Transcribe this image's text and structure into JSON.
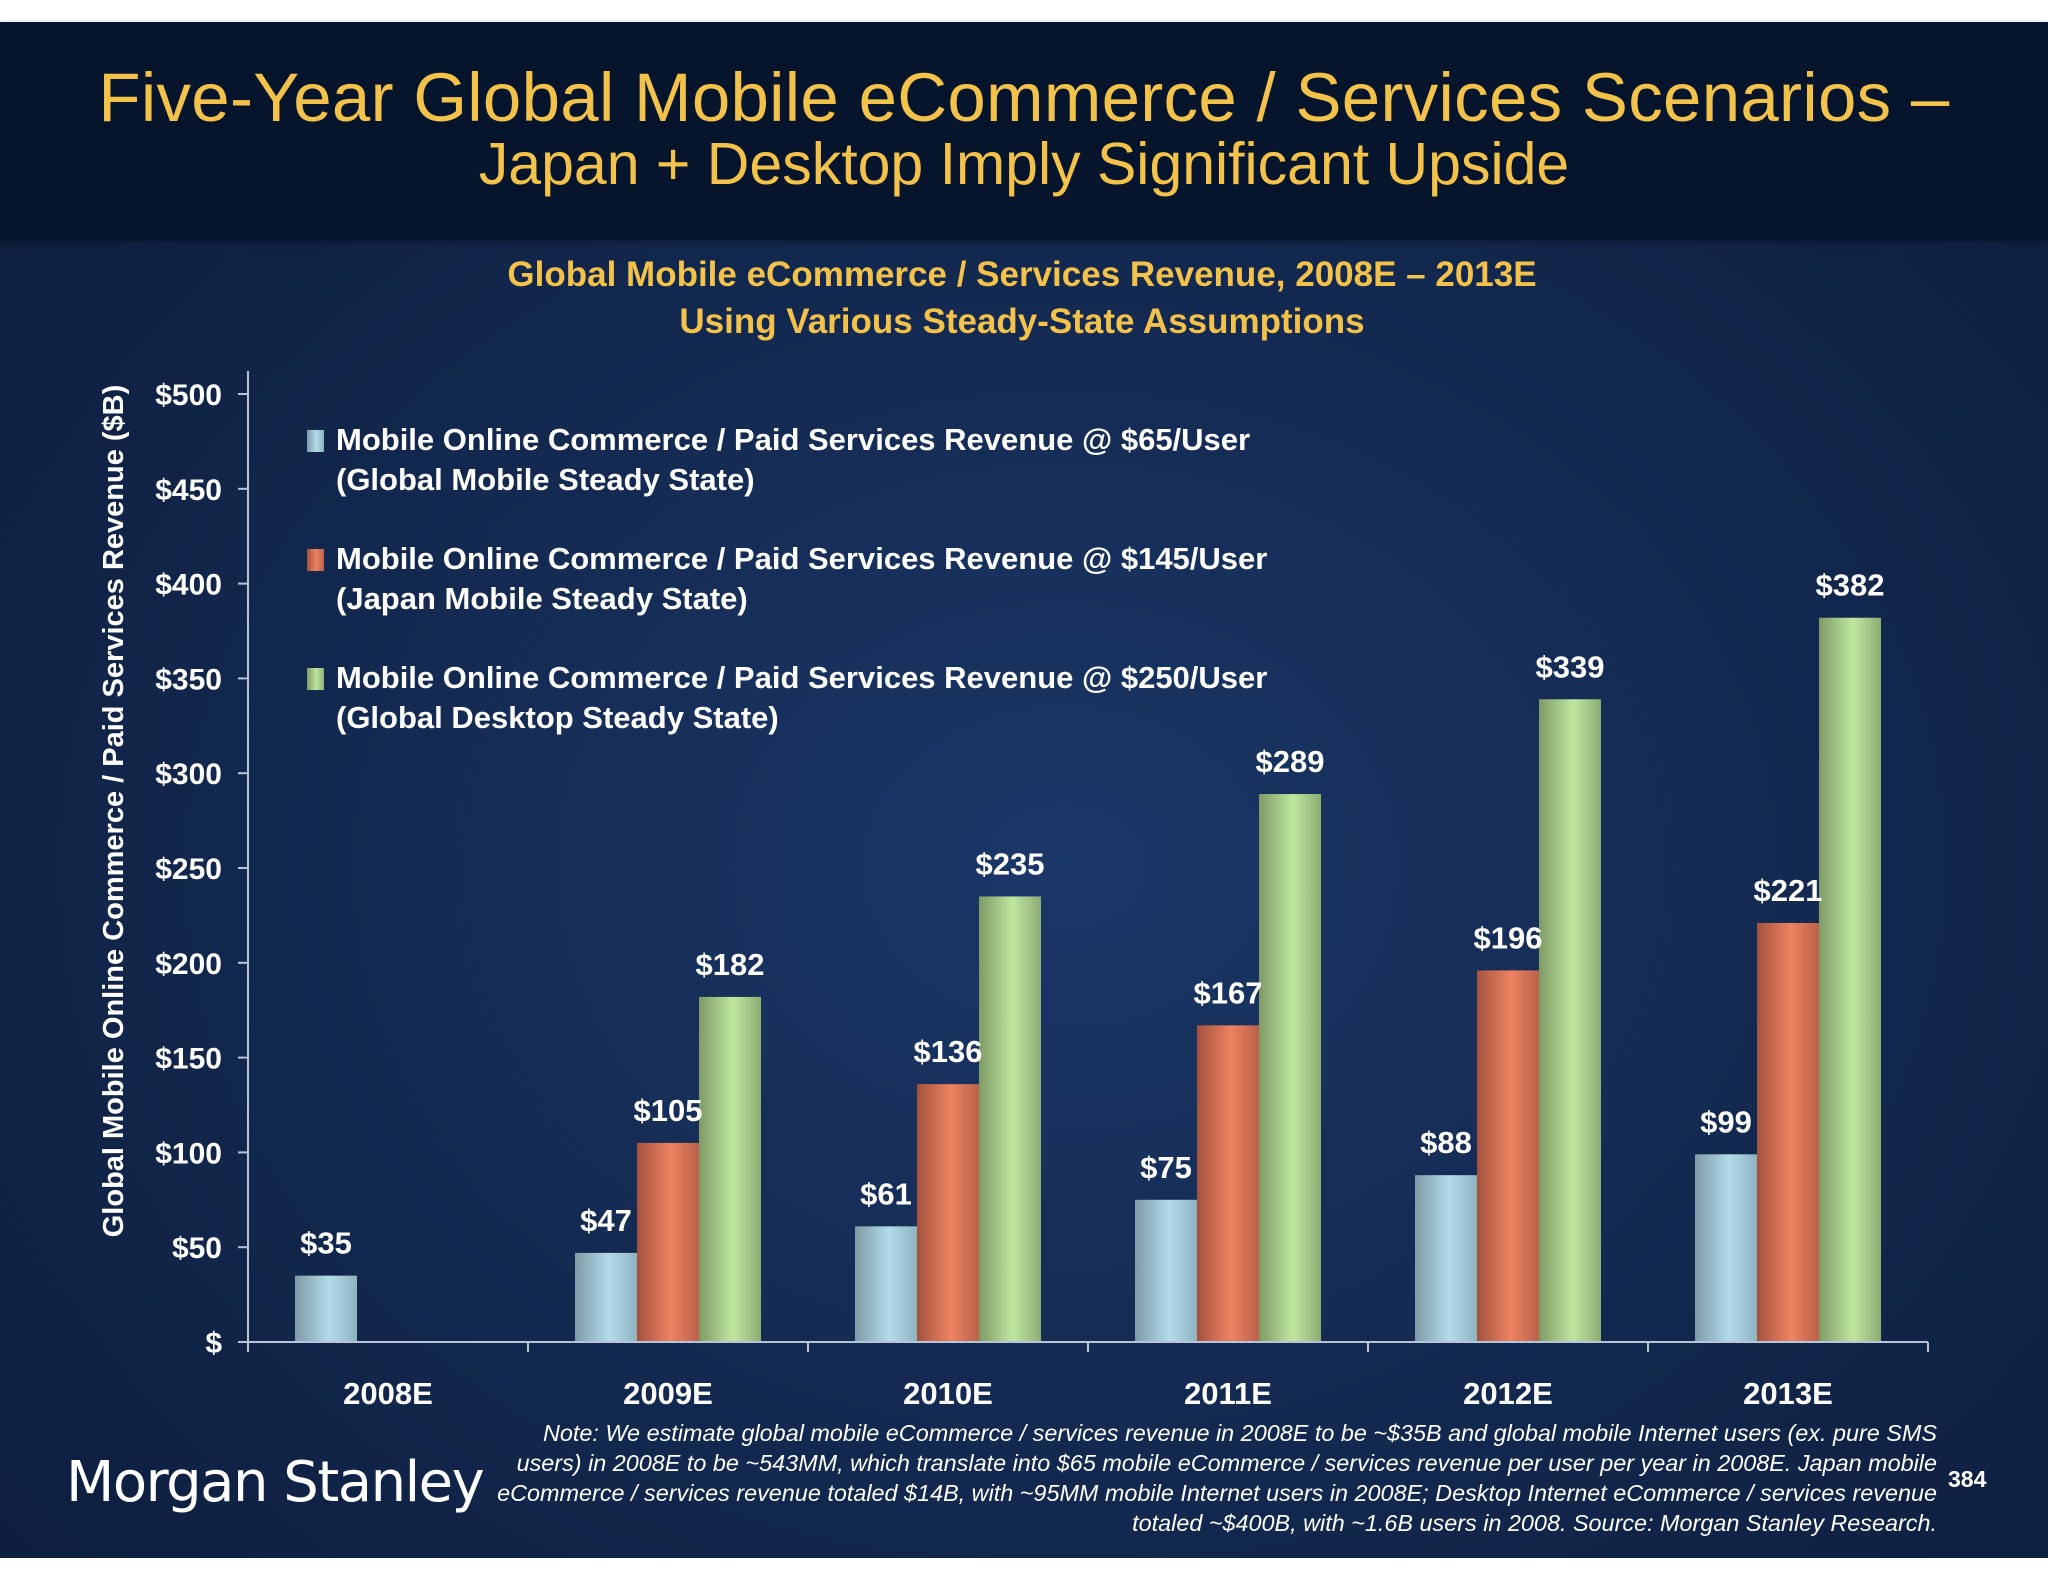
{
  "slide": {
    "title": "Five-Year Global Mobile eCommerce / Services Scenarios –",
    "subtitle": "Japan + Desktop Imply Significant Upside",
    "brand": "Morgan Stanley",
    "page_number": "384",
    "note": "Note: We estimate global mobile eCommerce / services revenue in 2008E to be ~$35B and global mobile Internet users (ex. pure SMS users) in 2008E to be ~543MM, which translate into $65 mobile eCommerce / services revenue per user per year in 2008E. Japan mobile eCommerce / services revenue totaled $14B, with ~95MM mobile Internet users in 2008E; Desktop Internet eCommerce / services revenue totaled ~$400B, with ~1.6B users in 2008. Source: Morgan Stanley Research.",
    "colors": {
      "header_bg": "#07152c",
      "title": "#f2c24a",
      "chart_title": "#f2c24a",
      "text": "#ffffff"
    }
  },
  "chart_data": {
    "type": "bar",
    "title": "Global Mobile eCommerce / Services Revenue, 2008E – 2013E",
    "subtitle": "Using Various Steady-State Assumptions",
    "xlabel": "",
    "ylabel": "Global Mobile Online Commerce / Paid Services Revenue ($B)",
    "ylim": [
      0,
      500
    ],
    "ytick_step": 50,
    "y_tick_labels": [
      "$",
      "$50",
      "$100",
      "$150",
      "$200",
      "$250",
      "$300",
      "$350",
      "$400",
      "$450",
      "$500"
    ],
    "grid": false,
    "legend_position": "top-left",
    "categories": [
      "2008E",
      "2009E",
      "2010E",
      "2011E",
      "2012E",
      "2013E"
    ],
    "series": [
      {
        "name": "Mobile Online Commerce / Paid Services Revenue @ $65/User",
        "name_line2": "(Global Mobile Steady State)",
        "color": "#a9d3e3",
        "values": [
          35,
          47,
          61,
          75,
          88,
          99
        ],
        "labels": [
          "$35",
          "$47",
          "$61",
          "$75",
          "$88",
          "$99"
        ]
      },
      {
        "name": "Mobile Online Commerce / Paid Services Revenue @ $145/User",
        "name_line2": "(Japan Mobile Steady State)",
        "color": "#e57a5c",
        "values": [
          null,
          105,
          136,
          167,
          196,
          221
        ],
        "labels": [
          "",
          "$105",
          "$136",
          "$167",
          "$196",
          "$221"
        ]
      },
      {
        "name": "Mobile Online Commerce / Paid Services Revenue @ $250/User",
        "name_line2": "(Global Desktop Steady State)",
        "color": "#b5dc95",
        "values": [
          null,
          182,
          235,
          289,
          339,
          382
        ],
        "labels": [
          "",
          "$182",
          "$235",
          "$289",
          "$339",
          "$382"
        ]
      }
    ]
  }
}
